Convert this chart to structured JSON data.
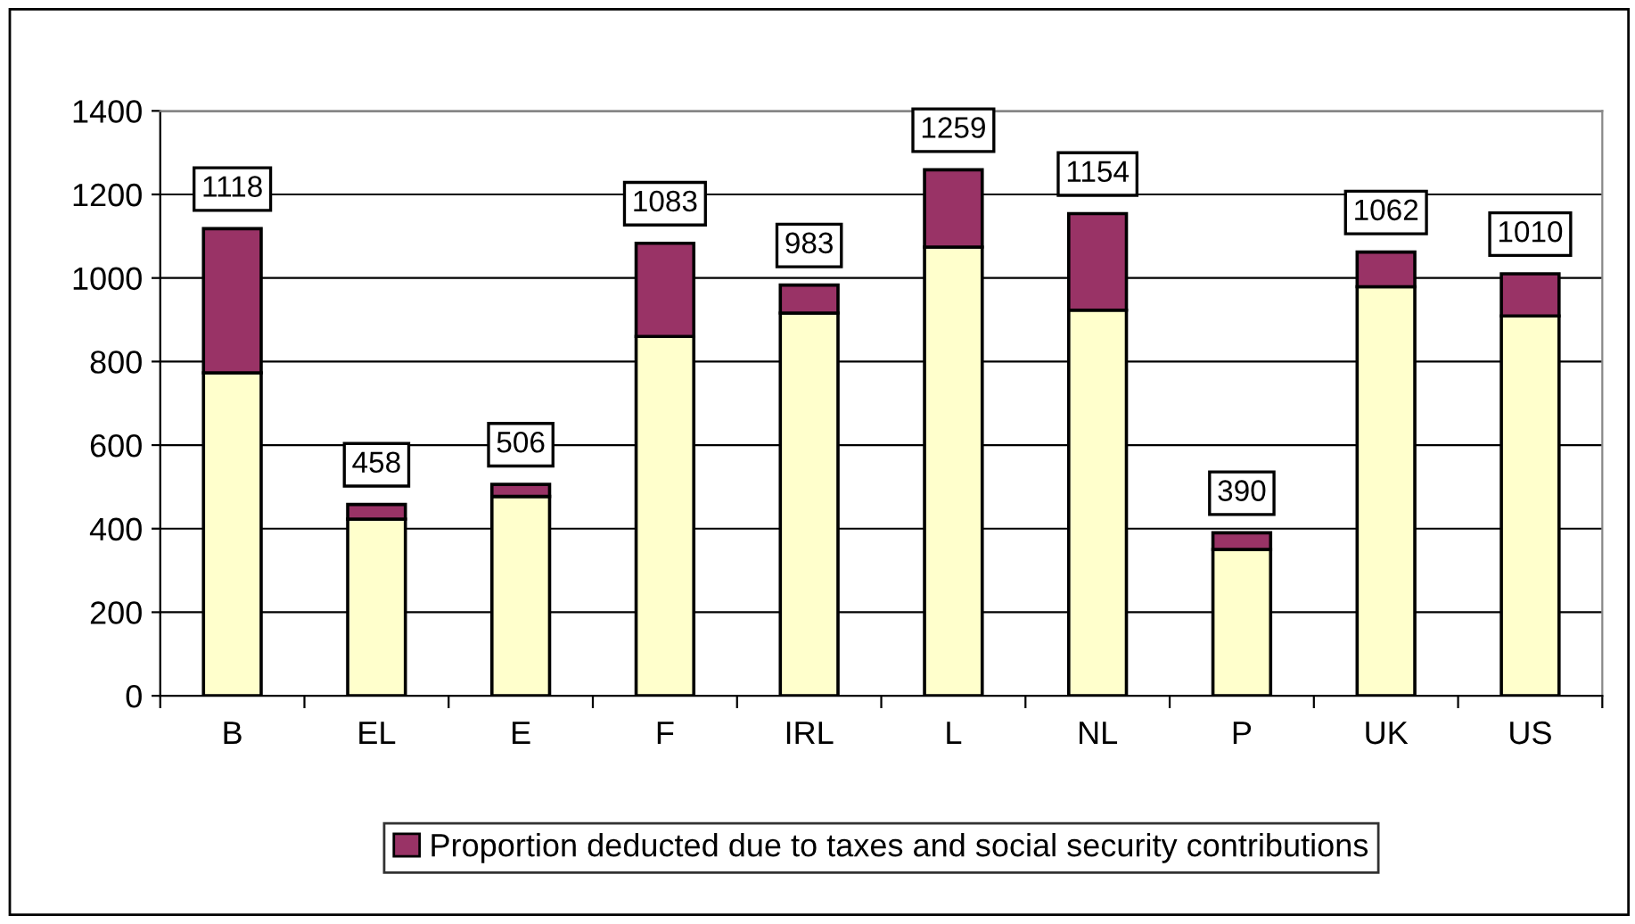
{
  "chart_data": {
    "type": "bar",
    "stacked": true,
    "categories": [
      "B",
      "EL",
      "E",
      "F",
      "IRL",
      "L",
      "NL",
      "P",
      "UK",
      "US"
    ],
    "series": [
      {
        "color": "#ffffcc",
        "values": [
          773,
          423,
          477,
          860,
          916,
          1074,
          923,
          350,
          979,
          909
        ]
      },
      {
        "name": "Proportion deducted due to taxes and social security contributions",
        "color": "#993366",
        "values": [
          345,
          35,
          29,
          223,
          67,
          185,
          231,
          40,
          83,
          101
        ]
      }
    ],
    "totals": [
      "1118",
      "458",
      "506",
      "1083",
      "983",
      "1259",
      "1154",
      "390",
      "1062",
      "1010"
    ],
    "ylim": [
      0,
      1400
    ],
    "yticks": [
      0,
      200,
      400,
      600,
      800,
      1000,
      1200,
      1400
    ],
    "grid": "y",
    "legend": "bottom"
  }
}
